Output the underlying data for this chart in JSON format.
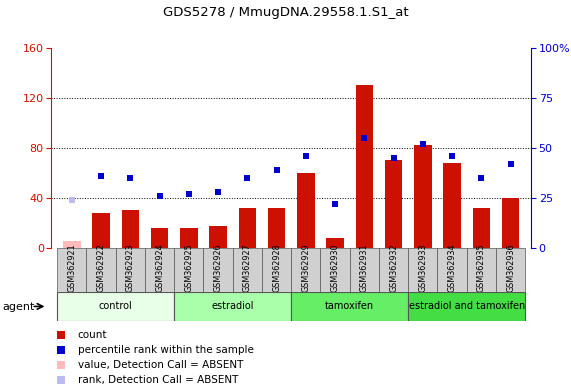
{
  "title": "GDS5278 / MmugDNA.29558.1.S1_at",
  "samples": [
    "GSM362921",
    "GSM362922",
    "GSM362923",
    "GSM362924",
    "GSM362925",
    "GSM362926",
    "GSM362927",
    "GSM362928",
    "GSM362929",
    "GSM362930",
    "GSM362931",
    "GSM362932",
    "GSM362933",
    "GSM362934",
    "GSM362935",
    "GSM362936"
  ],
  "count_values": [
    5,
    28,
    30,
    16,
    16,
    17,
    32,
    32,
    60,
    8,
    130,
    70,
    82,
    68,
    32,
    40
  ],
  "count_absent": [
    true,
    false,
    false,
    false,
    false,
    false,
    false,
    false,
    false,
    false,
    false,
    false,
    false,
    false,
    false,
    false
  ],
  "rank_values": [
    24,
    36,
    35,
    26,
    27,
    28,
    35,
    39,
    46,
    22,
    55,
    45,
    52,
    46,
    35,
    42
  ],
  "rank_absent": [
    true,
    false,
    false,
    false,
    false,
    false,
    false,
    false,
    false,
    false,
    false,
    false,
    false,
    false,
    false,
    false
  ],
  "groups": [
    {
      "label": "control",
      "start": 0,
      "end": 3,
      "color": "#e8ffe8"
    },
    {
      "label": "estradiol",
      "start": 4,
      "end": 7,
      "color": "#aaffaa"
    },
    {
      "label": "tamoxifen",
      "start": 8,
      "end": 11,
      "color": "#66ee66"
    },
    {
      "label": "estradiol and tamoxifen",
      "start": 12,
      "end": 15,
      "color": "#44dd44"
    }
  ],
  "bar_color_present": "#cc1100",
  "bar_color_absent": "#ffbbbb",
  "rank_color_present": "#0000cc",
  "rank_color_absent": "#bbbbee",
  "ylim_left": [
    0,
    160
  ],
  "yticks_left": [
    0,
    40,
    80,
    120,
    160
  ],
  "ylim_right": [
    0,
    100
  ],
  "yticks_right": [
    0,
    25,
    50,
    75,
    100
  ],
  "yticklabels_right": [
    "0",
    "25",
    "50",
    "75",
    "100%"
  ],
  "background_color": "#ffffff"
}
